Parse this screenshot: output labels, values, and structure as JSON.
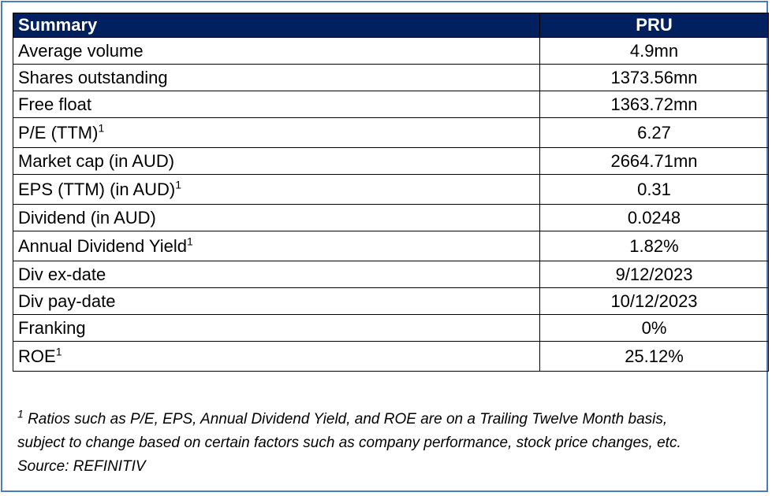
{
  "table": {
    "header": {
      "label": "Summary",
      "value": "PRU"
    },
    "rows": [
      {
        "label": "Average volume",
        "sup": "",
        "value": "4.9mn"
      },
      {
        "label": "Shares outstanding",
        "sup": "",
        "value": "1373.56mn"
      },
      {
        "label": "Free float",
        "sup": "",
        "value": "1363.72mn"
      },
      {
        "label": "P/E (TTM)",
        "sup": "1",
        "value": "6.27"
      },
      {
        "label": "Market cap (in AUD)",
        "sup": "",
        "value": "2664.71mn"
      },
      {
        "label": "EPS (TTM) (in AUD)",
        "sup": "1",
        "value": "0.31"
      },
      {
        "label": "Dividend (in AUD)",
        "sup": "",
        "value": "0.0248"
      },
      {
        "label": "Annual Dividend Yield",
        "sup": "1",
        "value": "1.82%"
      },
      {
        "label": "Div ex-date",
        "sup": "",
        "value": "9/12/2023"
      },
      {
        "label": "Div pay-date",
        "sup": "",
        "value": "10/12/2023"
      },
      {
        "label": "Franking",
        "sup": "",
        "value": "0%"
      },
      {
        "label": "ROE",
        "sup": "1",
        "value": "25.12%"
      }
    ]
  },
  "footnote": {
    "marker": "1",
    "line1": "Ratios such as P/E, EPS, Annual Dividend Yield, and ROE are on a Trailing Twelve Month basis,",
    "line2": "subject to change based on certain factors such as company performance, stock price changes, etc.",
    "source": "Source: REFINITIV"
  },
  "colors": {
    "header_bg": "#002060",
    "frame_border": "#4a7ebb"
  }
}
